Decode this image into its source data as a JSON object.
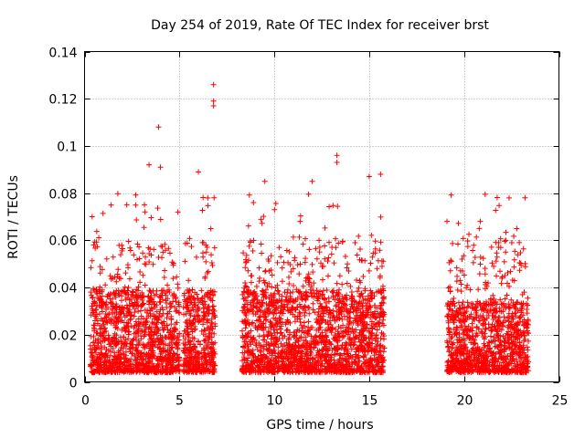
{
  "chart_data": {
    "type": "scatter",
    "title": "Day 254 of 2019, Rate Of TEC Index for receiver brst",
    "xlabel": "GPS time / hours",
    "ylabel": "ROTI / TECUs",
    "xlim": [
      0,
      25
    ],
    "ylim": [
      0,
      0.14
    ],
    "xticks": [
      0,
      5,
      10,
      15,
      20,
      25
    ],
    "xtick_labels": [
      "0",
      "5",
      "10",
      "15",
      "20",
      "25"
    ],
    "yticks": [
      0,
      0.02,
      0.04,
      0.06,
      0.08,
      0.1,
      0.12,
      0.14
    ],
    "ytick_labels": [
      "0",
      "0.02",
      "0.04",
      "0.06",
      "0.08",
      "0.1",
      "0.12",
      "0.14"
    ],
    "grid": true,
    "marker": "+",
    "color": "#ff0000",
    "segments": [
      {
        "start": 0.3,
        "end": 5.0,
        "base_max": 0.035
      },
      {
        "start": 5.2,
        "end": 6.9,
        "base_max": 0.035
      },
      {
        "start": 8.3,
        "end": 15.8,
        "base_max": 0.035
      },
      {
        "start": 19.1,
        "end": 23.4,
        "base_max": 0.03
      }
    ],
    "notable_points": [
      {
        "x": 6.8,
        "y": 0.126
      },
      {
        "x": 6.8,
        "y": 0.119
      },
      {
        "x": 6.8,
        "y": 0.117
      },
      {
        "x": 3.9,
        "y": 0.108
      },
      {
        "x": 13.3,
        "y": 0.096
      },
      {
        "x": 13.3,
        "y": 0.093
      },
      {
        "x": 3.4,
        "y": 0.092
      },
      {
        "x": 4.0,
        "y": 0.091
      },
      {
        "x": 6.0,
        "y": 0.089
      },
      {
        "x": 15.6,
        "y": 0.088
      },
      {
        "x": 15.0,
        "y": 0.087
      },
      {
        "x": 9.5,
        "y": 0.085
      },
      {
        "x": 12.0,
        "y": 0.085
      },
      {
        "x": 1.4,
        "y": 0.075
      },
      {
        "x": 8.9,
        "y": 0.076
      },
      {
        "x": 19.1,
        "y": 0.068
      },
      {
        "x": 20.8,
        "y": 0.065
      },
      {
        "x": 0.4,
        "y": 0.07
      },
      {
        "x": 22.2,
        "y": 0.06
      }
    ]
  }
}
